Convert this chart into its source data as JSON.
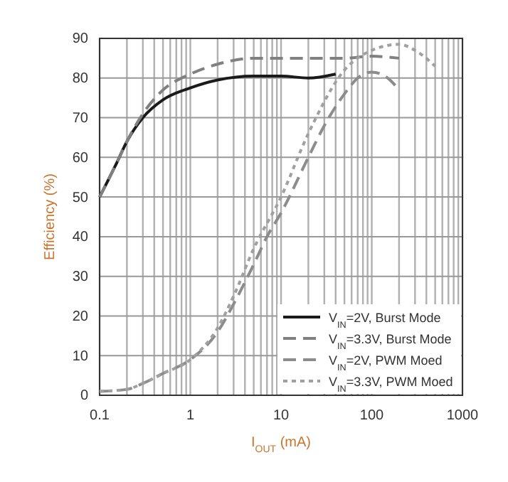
{
  "chart_data": {
    "type": "line",
    "xlabel": "I$_{OUT}$ (mA)",
    "ylabel": "Efficiency (%)",
    "log": "x",
    "grid": true,
    "legend": "bottom right",
    "xlim": [
      0.1,
      1000
    ],
    "ylim": [
      0,
      90
    ],
    "xticks": [
      0.1,
      {
        "value": 0.2,
        "label": null
      },
      {
        "value": 0.3,
        "label": null
      },
      {
        "value": 0.4,
        "label": null
      },
      {
        "value": 0.5,
        "label": null
      },
      {
        "value": 0.6,
        "label": null
      },
      {
        "value": 0.7,
        "label": null
      },
      {
        "value": 0.8,
        "label": null
      },
      {
        "value": 0.9,
        "label": null
      },
      1,
      {
        "value": 2,
        "label": null
      },
      {
        "value": 3,
        "label": null
      },
      {
        "value": 4,
        "label": null
      },
      {
        "value": 5,
        "label": null
      },
      {
        "value": 6,
        "label": null
      },
      {
        "value": 7,
        "label": null
      },
      {
        "value": 8,
        "label": null
      },
      {
        "value": 9,
        "label": null
      },
      10,
      {
        "value": 20,
        "label": null
      },
      {
        "value": 30,
        "label": null
      },
      {
        "value": 40,
        "label": null
      },
      {
        "value": 50,
        "label": null
      },
      {
        "value": 60,
        "label": null
      },
      {
        "value": 70,
        "label": null
      },
      {
        "value": 80,
        "label": null
      },
      {
        "value": 90,
        "label": null
      },
      100,
      {
        "value": 200,
        "label": null
      },
      {
        "value": 300,
        "label": null
      },
      {
        "value": 400,
        "label": null
      },
      {
        "value": 500,
        "label": null
      },
      {
        "value": 600,
        "label": null
      },
      {
        "value": 700,
        "label": null
      },
      {
        "value": 800,
        "label": null
      },
      {
        "value": 900,
        "label": null
      },
      1000
    ],
    "yticks": [
      0,
      10,
      20,
      30,
      40,
      50,
      60,
      70,
      80,
      90
    ],
    "series": [
      {
        "name": "V$_{IN}$=2V, Burst Mode",
        "color": "#1a1a1a",
        "line_style": "solid",
        "x": [
          0.1,
          0.15,
          0.2,
          0.3,
          0.5,
          1,
          2,
          5,
          10,
          20,
          40
        ],
        "values": [
          50,
          58,
          64,
          70,
          74.5,
          77.5,
          79.5,
          80.5,
          80.5,
          80,
          81
        ]
      },
      {
        "name": "V$_{IN}$=3.3V, Burst Mode",
        "color": "#808080",
        "line_style": "dashed",
        "x": [
          0.1,
          0.15,
          0.2,
          0.3,
          0.5,
          1,
          2,
          5,
          10,
          50,
          100,
          200
        ],
        "values": [
          50,
          58,
          64,
          71,
          77,
          81,
          83.5,
          85,
          85,
          85,
          85.5,
          85
        ]
      },
      {
        "name": "V$_{IN}$=2V, PWM Moed",
        "color": "#8c8c8c",
        "line_style": "dashed",
        "x": [
          0.1,
          0.2,
          0.3,
          0.5,
          1,
          2,
          3,
          5,
          7,
          10,
          20,
          30,
          50,
          70,
          100,
          150,
          200
        ],
        "values": [
          1,
          1.5,
          3,
          5.5,
          9,
          16,
          23,
          33,
          40,
          46,
          60,
          68,
          76,
          80,
          81.5,
          80,
          77
        ]
      },
      {
        "name": "V$_{IN}$=3.3V, PWM Moed",
        "color": "#a0a0a0",
        "line_style": "dotted",
        "x": [
          0.1,
          0.2,
          0.3,
          0.5,
          1,
          2,
          3,
          5,
          10,
          20,
          50,
          100,
          200,
          300,
          500
        ],
        "values": [
          1,
          1.5,
          3,
          5.5,
          9,
          17,
          25,
          37,
          50,
          66,
          82,
          87,
          88.5,
          87,
          83
        ]
      }
    ]
  }
}
